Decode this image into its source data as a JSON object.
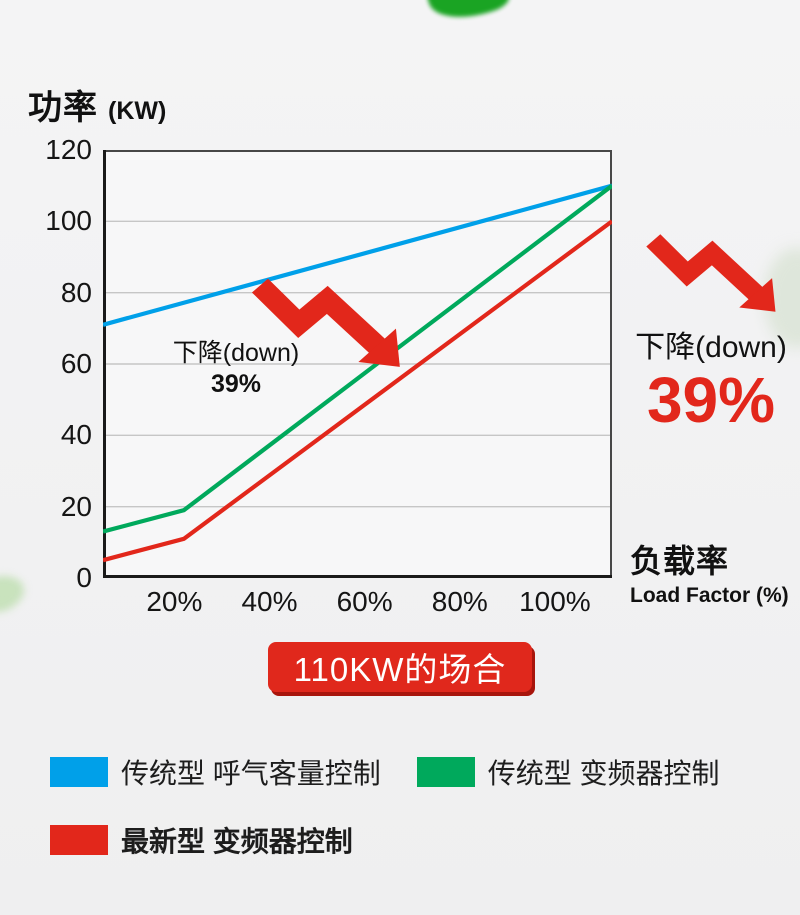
{
  "title": {
    "main": "功率",
    "unit": "(KW)"
  },
  "colors": {
    "blue": "#00a0e9",
    "green": "#00a95c",
    "red": "#e2271b",
    "badge_bg": "#e0281c",
    "badge_shadow": "#a8150c",
    "grid": "#c6c6c6",
    "border": "#474747",
    "axis": "#1a1a1a",
    "plot_bg": "#f7f7f8"
  },
  "chart_data": {
    "type": "line",
    "title": "功率 (KW) vs 负载率 Load Factor (%)",
    "x_axis": {
      "range": [
        5,
        112
      ],
      "tick_values": [
        20,
        40,
        60,
        80,
        100
      ],
      "tick_labels": [
        "20%",
        "40%",
        "60%",
        "80%",
        "100%"
      ],
      "title_cn": "负载率",
      "title_en": "Load Factor (%)"
    },
    "y_axis": {
      "range": [
        0,
        120
      ],
      "tick_values": [
        0,
        20,
        40,
        60,
        80,
        100,
        120
      ],
      "title": "功率 (KW)"
    },
    "grid": "horizontal",
    "legend_position": "bottom",
    "series": [
      {
        "name": "传统型 呼气客量控制",
        "color": "#00a0e9",
        "points": [
          [
            5,
            71
          ],
          [
            112,
            110
          ]
        ]
      },
      {
        "name": "传统型 变频器控制",
        "color": "#00a95c",
        "points": [
          [
            5,
            13
          ],
          [
            22,
            19
          ],
          [
            112,
            110
          ]
        ]
      },
      {
        "name": "最新型 变频器控制",
        "color": "#e2271b",
        "points": [
          [
            5,
            5
          ],
          [
            22,
            11
          ],
          [
            112,
            100
          ]
        ]
      }
    ]
  },
  "annotations": {
    "in_chart": {
      "line1": "下降(down)",
      "line2": "39%"
    },
    "right": {
      "line1": "下降(down)",
      "line2": "39%"
    },
    "badge": "110KW的场合"
  },
  "legend": {
    "rows": [
      [
        {
          "label": "传统型 呼气客量控制",
          "color": "#00a0e9",
          "bold": false
        },
        {
          "label": "传统型 变频器控制",
          "color": "#00a95c",
          "bold": false
        }
      ],
      [
        {
          "label": "最新型 变频器控制",
          "color": "#e2271b",
          "bold": true
        }
      ]
    ]
  }
}
